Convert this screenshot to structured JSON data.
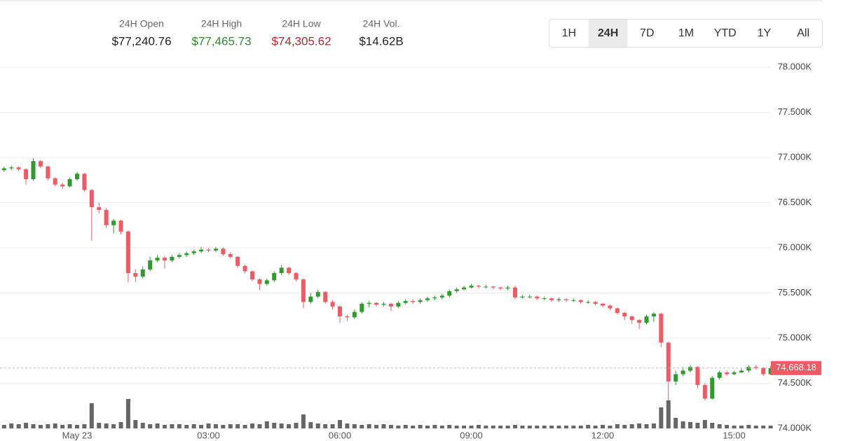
{
  "header": {
    "stats": [
      {
        "label": "24H Open",
        "value": "$77,240.76",
        "color": "#222222"
      },
      {
        "label": "24H High",
        "value": "$77,465.73",
        "color": "#2e8b2e"
      },
      {
        "label": "24H Low",
        "value": "$74,305.62",
        "color": "#c3232b"
      },
      {
        "label": "24H Vol.",
        "value": "$14.62B",
        "color": "#222222"
      }
    ],
    "ranges": [
      "1H",
      "24H",
      "7D",
      "1M",
      "YTD",
      "1Y",
      "All"
    ],
    "active_range": 1
  },
  "chart_data": {
    "type": "candlestick",
    "up_color": "#2f9a2f",
    "down_color": "#f05a64",
    "volume_color": "#666666",
    "grid": true,
    "ylim": [
      74000,
      78000
    ],
    "yticks": [
      {
        "value": 74000,
        "label": "74.000K"
      },
      {
        "value": 74500,
        "label": "74.500K"
      },
      {
        "value": 75000,
        "label": "75.000K"
      },
      {
        "value": 75500,
        "label": "75.500K"
      },
      {
        "value": 76000,
        "label": "76.000K"
      },
      {
        "value": 76500,
        "label": "76.500K"
      },
      {
        "value": 77000,
        "label": "77.000K"
      },
      {
        "value": 77500,
        "label": "77.500K"
      },
      {
        "value": 78000,
        "label": "78.000K"
      }
    ],
    "xticks": [
      {
        "value": "00:00",
        "label": "May 23"
      },
      "03:00",
      "06:00",
      "09:00",
      "12:00",
      "15:00"
    ],
    "last": {
      "value": 74668.18,
      "label": "74,668.18"
    },
    "x": [
      "22:20",
      "22:30",
      "22:40",
      "22:50",
      "23:00",
      "23:10",
      "23:20",
      "23:30",
      "23:40",
      "23:50",
      "00:00",
      "00:10",
      "00:20",
      "00:30",
      "00:40",
      "00:50",
      "01:00",
      "01:10",
      "01:20",
      "01:30",
      "01:40",
      "01:50",
      "02:00",
      "02:10",
      "02:20",
      "02:30",
      "02:40",
      "02:50",
      "03:00",
      "03:10",
      "03:20",
      "03:30",
      "03:40",
      "03:50",
      "04:00",
      "04:10",
      "04:20",
      "04:30",
      "04:40",
      "04:50",
      "05:00",
      "05:10",
      "05:20",
      "05:30",
      "05:40",
      "05:50",
      "06:00",
      "06:10",
      "06:20",
      "06:30",
      "06:40",
      "06:50",
      "07:00",
      "07:10",
      "07:20",
      "07:30",
      "07:40",
      "07:50",
      "08:00",
      "08:10",
      "08:20",
      "08:30",
      "08:40",
      "08:50",
      "09:00",
      "09:10",
      "09:20",
      "09:30",
      "09:40",
      "09:50",
      "10:00",
      "10:10",
      "10:20",
      "10:30",
      "10:40",
      "10:50",
      "11:00",
      "11:10",
      "11:20",
      "11:30",
      "11:40",
      "11:50",
      "12:00",
      "12:10",
      "12:20",
      "12:30",
      "12:40",
      "12:50",
      "13:00",
      "13:10",
      "13:20",
      "13:30",
      "13:40",
      "13:50",
      "14:00",
      "14:10",
      "14:20",
      "14:30",
      "14:40",
      "14:50",
      "15:00",
      "15:10",
      "15:20",
      "15:30",
      "15:40",
      "15:50"
    ],
    "open": [
      76860,
      76880,
      76890,
      76870,
      76760,
      76960,
      76900,
      76770,
      76700,
      76680,
      76760,
      76820,
      76640,
      76450,
      76420,
      76250,
      76300,
      76180,
      75720,
      75680,
      75760,
      75860,
      75890,
      75860,
      75900,
      75920,
      75940,
      75960,
      75980,
      75970,
      75990,
      75930,
      75900,
      75800,
      75740,
      75650,
      75600,
      75640,
      75720,
      75780,
      75720,
      75650,
      75400,
      75460,
      75510,
      75400,
      75350,
      75240,
      75230,
      75290,
      75380,
      75390,
      75370,
      75380,
      75350,
      75390,
      75410,
      75400,
      75420,
      75440,
      75450,
      75470,
      75520,
      75540,
      75560,
      75580,
      75570,
      75570,
      75560,
      75550,
      75560,
      75450,
      75460,
      75460,
      75440,
      75440,
      75420,
      75430,
      75420,
      75420,
      75400,
      75400,
      75380,
      75360,
      75330,
      75280,
      75240,
      75200,
      75170,
      75240,
      75270,
      74950,
      74520,
      74600,
      74640,
      74680,
      74480,
      74330,
      74560,
      74620,
      74600,
      74620,
      74640,
      74680,
      74670,
      74600
    ],
    "high": [
      76900,
      76910,
      76900,
      76880,
      76990,
      76970,
      76910,
      76780,
      76720,
      76780,
      76840,
      76830,
      76650,
      76500,
      76440,
      76320,
      76310,
      76190,
      75760,
      75790,
      75900,
      75920,
      75910,
      75920,
      75940,
      75960,
      75980,
      76010,
      75995,
      76010,
      76000,
      75950,
      75910,
      75810,
      75750,
      75660,
      75660,
      75740,
      75810,
      75790,
      75730,
      75660,
      75500,
      75540,
      75520,
      75420,
      75360,
      75260,
      75320,
      75400,
      75410,
      75400,
      75400,
      75390,
      75410,
      75430,
      75430,
      75440,
      75460,
      75470,
      75490,
      75540,
      75560,
      75580,
      75600,
      75590,
      75590,
      75580,
      75570,
      75580,
      75580,
      75480,
      75480,
      75470,
      75460,
      75450,
      75450,
      75440,
      75440,
      75430,
      75420,
      75410,
      75390,
      75370,
      75340,
      75290,
      75250,
      75210,
      75260,
      75290,
      75280,
      74960,
      74640,
      74680,
      74700,
      74690,
      74500,
      74580,
      74640,
      74640,
      74640,
      74660,
      74700,
      74700,
      74680,
      74690
    ],
    "low": [
      76840,
      76860,
      76850,
      76700,
      76740,
      76880,
      76750,
      76680,
      76650,
      76670,
      76740,
      76620,
      76080,
      76380,
      76220,
      76160,
      76150,
      75620,
      75620,
      75660,
      75740,
      75840,
      75770,
      75840,
      75880,
      75900,
      75920,
      75940,
      75950,
      75950,
      75910,
      75880,
      75780,
      75720,
      75630,
      75530,
      75580,
      75620,
      75700,
      75700,
      75630,
      75330,
      75380,
      75440,
      75380,
      75320,
      75170,
      75190,
      75210,
      75270,
      75340,
      75350,
      75350,
      75300,
      75330,
      75370,
      75380,
      75380,
      75400,
      75420,
      75430,
      75450,
      75500,
      75530,
      75550,
      75550,
      75550,
      75540,
      75530,
      75530,
      75430,
      75440,
      75440,
      75420,
      75420,
      75400,
      75400,
      75400,
      75400,
      75380,
      75380,
      75360,
      75340,
      75310,
      75260,
      75200,
      75160,
      75100,
      75150,
      75180,
      74900,
      74305.62,
      74480,
      74580,
      74620,
      74440,
      74310,
      74320,
      74540,
      74580,
      74590,
      74610,
      74620,
      74650,
      74580,
      74590
    ],
    "close": [
      76880,
      76890,
      76870,
      76760,
      76960,
      76900,
      76770,
      76700,
      76680,
      76760,
      76820,
      76640,
      76450,
      76420,
      76250,
      76300,
      76180,
      75720,
      75680,
      75760,
      75860,
      75890,
      75860,
      75900,
      75920,
      75940,
      75960,
      75980,
      75970,
      75990,
      75930,
      75900,
      75800,
      75740,
      75650,
      75600,
      75640,
      75720,
      75780,
      75720,
      75650,
      75400,
      75460,
      75510,
      75400,
      75350,
      75240,
      75230,
      75290,
      75380,
      75390,
      75370,
      75380,
      75350,
      75390,
      75410,
      75400,
      75420,
      75440,
      75450,
      75470,
      75520,
      75540,
      75560,
      75580,
      75570,
      75570,
      75560,
      75550,
      75560,
      75450,
      75460,
      75460,
      75440,
      75440,
      75420,
      75430,
      75420,
      75420,
      75400,
      75400,
      75380,
      75360,
      75330,
      75280,
      75240,
      75200,
      75170,
      75240,
      75270,
      74950,
      74520,
      74600,
      74640,
      74680,
      74480,
      74330,
      74560,
      74620,
      74600,
      74620,
      74640,
      74680,
      74670,
      74600,
      74668.18
    ],
    "volume": [
      50,
      70,
      60,
      80,
      60,
      50,
      60,
      70,
      50,
      60,
      50,
      60,
      360,
      80,
      70,
      60,
      90,
      420,
      120,
      80,
      60,
      70,
      50,
      60,
      60,
      50,
      60,
      50,
      70,
      60,
      50,
      60,
      60,
      50,
      70,
      60,
      100,
      80,
      70,
      60,
      80,
      200,
      90,
      70,
      60,
      60,
      120,
      70,
      60,
      50,
      60,
      50,
      60,
      50,
      40,
      50,
      40,
      50,
      40,
      50,
      40,
      50,
      40,
      40,
      40,
      50,
      40,
      40,
      40,
      40,
      50,
      40,
      40,
      40,
      40,
      40,
      40,
      40,
      40,
      40,
      50,
      40,
      50,
      40,
      60,
      50,
      60,
      70,
      60,
      70,
      300,
      400,
      150,
      100,
      90,
      80,
      120,
      80,
      60,
      50,
      40,
      40,
      50,
      40,
      40,
      40
    ]
  }
}
